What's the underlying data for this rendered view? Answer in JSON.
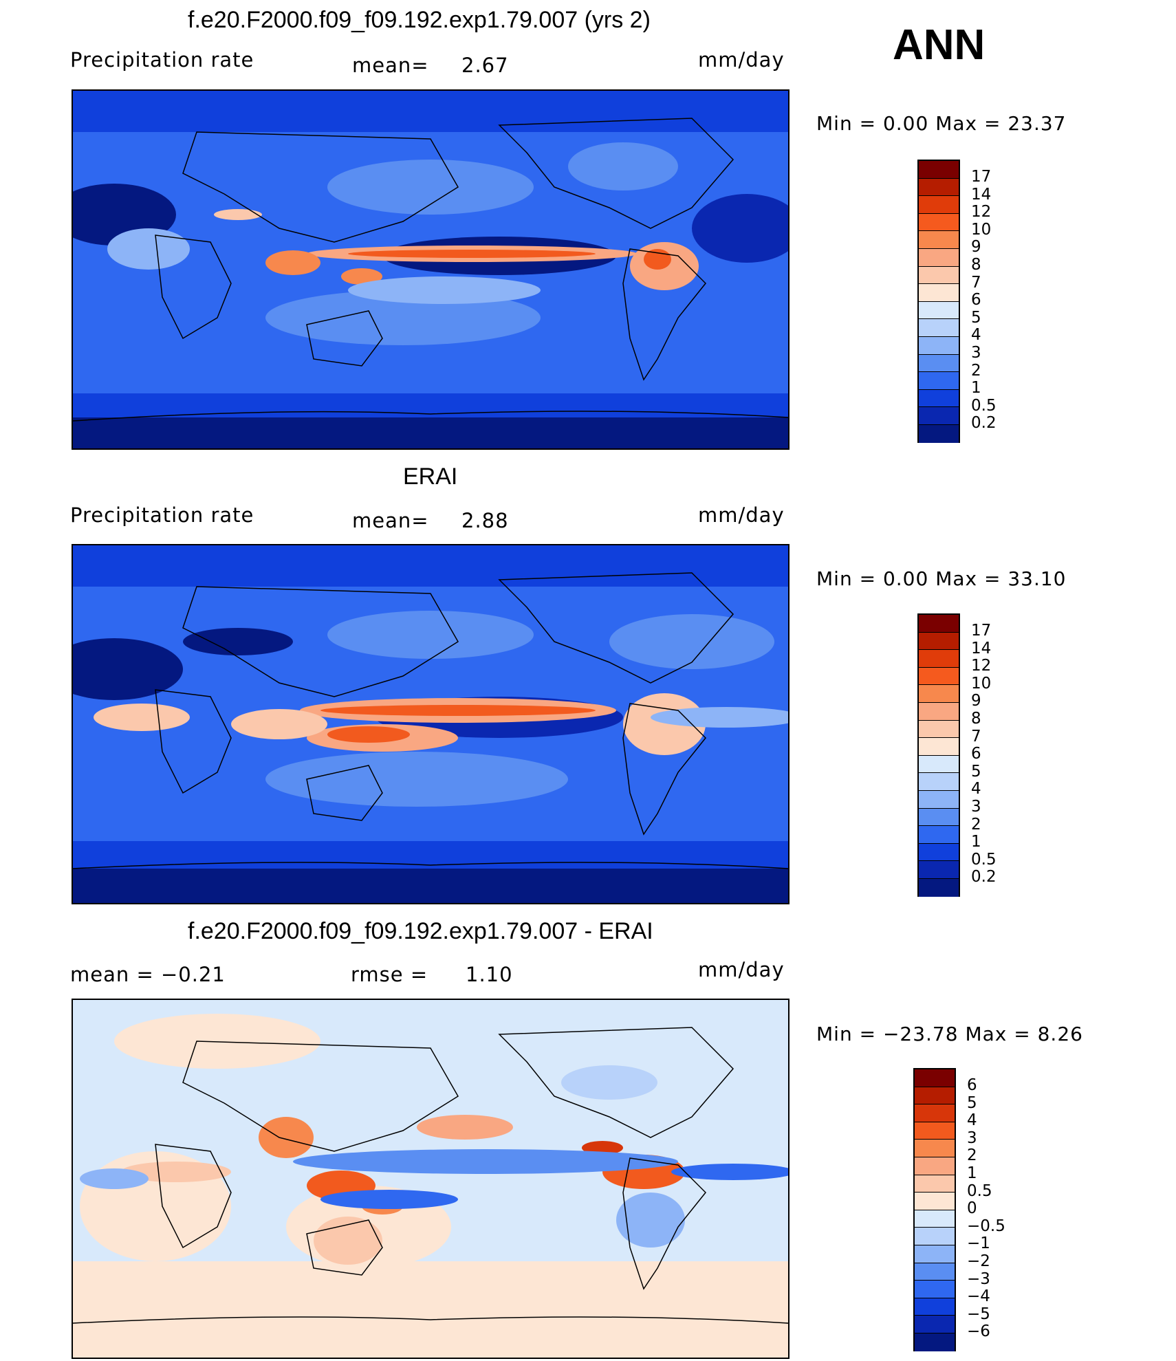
{
  "season": "ANN",
  "panels": [
    {
      "title": "f.e20.F2000.f09_f09.192.exp1.79.007 (yrs 2)",
      "left_label": "Precipitation  rate",
      "mid_label": "mean=",
      "mid_value": "2.67",
      "units": "mm/day",
      "minmax": "Min  =     0.00  Max  =     23.37",
      "colorbar_labels": [
        "17",
        "14",
        "12",
        "10",
        "9",
        "8",
        "7",
        "6",
        "5",
        "4",
        "3",
        "2",
        "1",
        "0.5",
        "0.2"
      ]
    },
    {
      "title": "ERAI",
      "left_label": "Precipitation  rate",
      "mid_label": "mean=",
      "mid_value": "2.88",
      "units": "mm/day",
      "minmax": "Min  =     0.00  Max  =     33.10",
      "colorbar_labels": [
        "17",
        "14",
        "12",
        "10",
        "9",
        "8",
        "7",
        "6",
        "5",
        "4",
        "3",
        "2",
        "1",
        "0.5",
        "0.2"
      ]
    },
    {
      "title": "f.e20.F2000.f09_f09.192.exp1.79.007 - ERAI",
      "left_label": "mean  =     −0.21",
      "mid_label": "rmse  =",
      "mid_value": "1.10",
      "units": "mm/day",
      "minmax": "Min  = −23.78  Max  =      8.26",
      "colorbar_labels": [
        "6",
        "5",
        "4",
        "3",
        "2",
        "1",
        "0.5",
        "0",
        "−0.5",
        "−1",
        "−2",
        "−3",
        "−4",
        "−5",
        "−6"
      ]
    }
  ],
  "colors": {
    "abs_scale": [
      "#7a0000",
      "#b51d00",
      "#e03c0a",
      "#f55a1e",
      "#f7884d",
      "#f9a782",
      "#fbc8ac",
      "#fde6d4",
      "#d8e9fb",
      "#b8d2fa",
      "#8db4f7",
      "#5a8ef2",
      "#2f68f0",
      "#1040dc",
      "#0a27b0",
      "#041880"
    ],
    "diff_scale": [
      "#7a0000",
      "#b51d00",
      "#d7360a",
      "#f25a1e",
      "#f7884d",
      "#f9a782",
      "#fbc8ac",
      "#fde6d4",
      "#d8e9fb",
      "#b8d2fa",
      "#8db4f7",
      "#5a8ef2",
      "#2f68f0",
      "#1040dc",
      "#0a27b0",
      "#041880"
    ]
  }
}
